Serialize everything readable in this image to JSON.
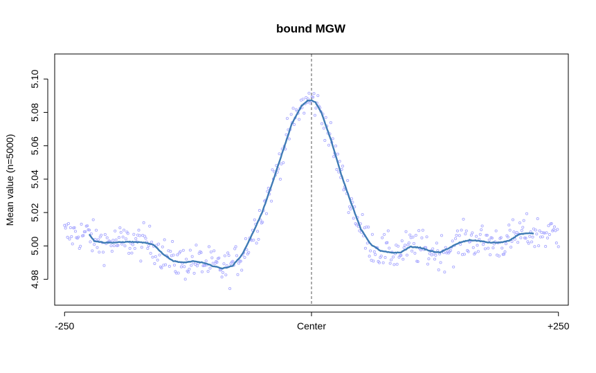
{
  "chart_data": {
    "type": "scatter",
    "title": "bound MGW",
    "xlabel": "",
    "ylabel": "Mean value (n=5000)",
    "xlim": [
      -260,
      260
    ],
    "ylim": [
      4.9645,
      5.115
    ],
    "x_ticks": [
      {
        "value": -250,
        "label": "-250"
      },
      {
        "value": 0,
        "label": "Center"
      },
      {
        "value": 250,
        "label": "+250"
      }
    ],
    "y_ticks": [
      {
        "value": 4.98,
        "label": "4.98"
      },
      {
        "value": 5.0,
        "label": "5.00"
      },
      {
        "value": 5.02,
        "label": "5.02"
      },
      {
        "value": 5.04,
        "label": "5.04"
      },
      {
        "value": 5.06,
        "label": "5.06"
      },
      {
        "value": 5.08,
        "label": "5.08"
      },
      {
        "value": 5.1,
        "label": "5.10"
      }
    ],
    "grid": false,
    "vline": {
      "x": 0,
      "style": "dashed",
      "color": "#555555"
    },
    "colors": {
      "points": "#aaaaff",
      "smooth": "#3f7bb5"
    },
    "point_noise": 0.0075,
    "smooth": {
      "name": "",
      "x": [
        -225,
        -220,
        -210,
        -200,
        -185,
        -170,
        -160,
        -150,
        -140,
        -130,
        -120,
        -110,
        -100,
        -90,
        -80,
        -70,
        -60,
        -50,
        -40,
        -30,
        -20,
        -10,
        -4,
        0,
        4,
        10,
        20,
        30,
        40,
        50,
        60,
        70,
        80,
        90,
        100,
        110,
        120,
        130,
        140,
        150,
        160,
        170,
        180,
        190,
        200,
        210,
        220,
        225
      ],
      "y": [
        5.007,
        5.003,
        5.002,
        5.002,
        5.0025,
        5.002,
        5.0008,
        4.995,
        4.991,
        4.99,
        4.9908,
        4.99,
        4.988,
        4.9865,
        4.988,
        4.995,
        5.007,
        5.02,
        5.037,
        5.055,
        5.073,
        5.084,
        5.087,
        5.0872,
        5.086,
        5.08,
        5.063,
        5.043,
        5.026,
        5.01,
        5.001,
        4.997,
        4.996,
        4.996,
        4.9995,
        4.999,
        4.997,
        4.996,
        4.999,
        5.002,
        5.0035,
        5.003,
        5.002,
        5.002,
        5.003,
        5.007,
        5.0075,
        5.0075
      ]
    },
    "scatter": {
      "name": "",
      "x_range": [
        -250,
        250
      ],
      "count": 500
    }
  }
}
